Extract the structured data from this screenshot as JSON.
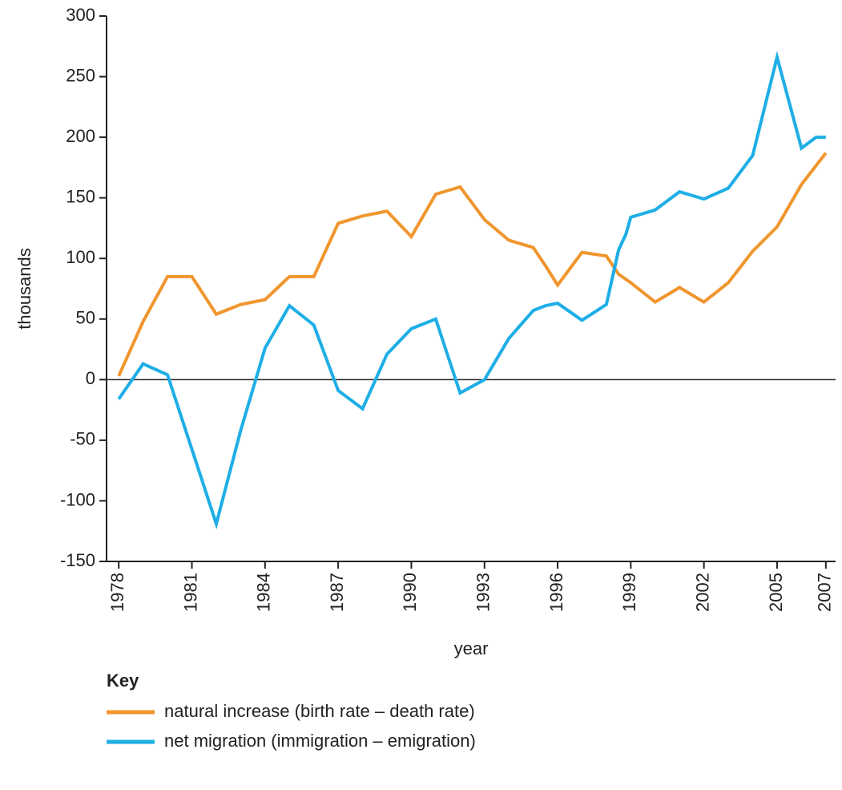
{
  "chart_data": {
    "type": "line",
    "xlabel": "year",
    "ylabel": "thousands",
    "legend_title": "Key",
    "xlim": [
      1977.5,
      2007.4
    ],
    "xticks": [
      1978,
      1981,
      1984,
      1987,
      1990,
      1993,
      1996,
      1999,
      2002,
      2005,
      2007
    ],
    "ylim": [
      -150,
      300
    ],
    "yticks": [
      -150,
      -100,
      -50,
      0,
      50,
      100,
      150,
      200,
      250,
      300
    ],
    "zero_line": true,
    "series": [
      {
        "name": "natural increase (birth rate – death rate)",
        "color": "#f0962e",
        "x": [
          1978,
          1979,
          1980,
          1981,
          1982,
          1983,
          1984,
          1985,
          1986,
          1987,
          1988,
          1989,
          1990,
          1991,
          1992,
          1993,
          1994,
          1995,
          1995.5,
          1996,
          1997,
          1998,
          1998.5,
          1999,
          2000,
          2001,
          2002,
          2003,
          2004,
          2005,
          2006,
          2007
        ],
        "values": [
          3,
          48,
          85,
          85,
          54,
          62,
          66,
          85,
          85,
          129,
          135,
          139,
          118,
          153,
          159,
          132,
          115,
          109,
          94,
          78,
          105,
          102,
          87,
          80,
          64,
          76,
          64,
          80,
          106,
          126,
          161,
          187
        ]
      },
      {
        "name": "net migration (immigration – emigration)",
        "color": "#1eaee6",
        "x": [
          1978,
          1979,
          1980,
          1982,
          1983,
          1984,
          1985,
          1986,
          1987,
          1988,
          1989,
          1990,
          1991,
          1992,
          1993,
          1994,
          1995,
          1995.5,
          1996,
          1997,
          1998,
          1998.5,
          1998.8,
          1999,
          2000,
          2001,
          2002,
          2003,
          2004,
          2005,
          2006,
          2006.6,
          2007
        ],
        "values": [
          -16,
          13,
          4,
          -119,
          -42,
          26,
          61,
          45,
          -9,
          -24,
          21,
          42,
          50,
          -11,
          0,
          34,
          57,
          61,
          63,
          49,
          62,
          107,
          120,
          134,
          140,
          155,
          149,
          158,
          185,
          266,
          191,
          200,
          200
        ]
      }
    ]
  }
}
